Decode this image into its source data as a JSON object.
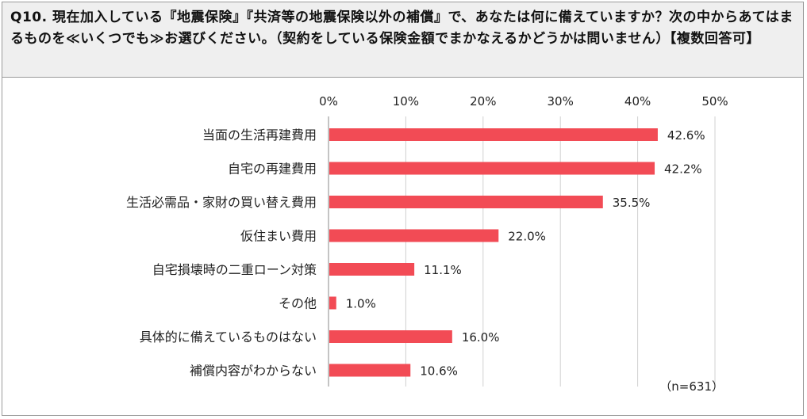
{
  "header": {
    "question": "Q10. 現在加入している『地震保険』『共済等の地震保険以外の補償』で、あなたは何に備えていますか？次の中からあてはまるものを≪いくつでも≫お選びください。（契約をしている保険金額でまかなえるかどうかは問いません）【複数回答可】"
  },
  "chart_data": {
    "type": "bar",
    "orientation": "horizontal",
    "categories": [
      "当面の生活再建費用",
      "自宅の再建費用",
      "生活必需品・家財の買い替え費用",
      "仮住まい費用",
      "自宅損壊時の二重ローン対策",
      "その他",
      "具体的に備えているものはない",
      "補償内容がわからない"
    ],
    "values": [
      42.6,
      42.2,
      35.5,
      22.0,
      11.1,
      1.0,
      16.0,
      10.6
    ],
    "value_labels": [
      "42.6%",
      "42.2%",
      "35.5%",
      "22.0%",
      "11.1%",
      "1.0%",
      "16.0%",
      "10.6%"
    ],
    "x_ticks": [
      "0%",
      "10%",
      "20%",
      "30%",
      "40%",
      "50%"
    ],
    "xlim": [
      0,
      50
    ],
    "axis_position": "top",
    "bar_color": "#f24b55",
    "note": "（n=631）"
  }
}
